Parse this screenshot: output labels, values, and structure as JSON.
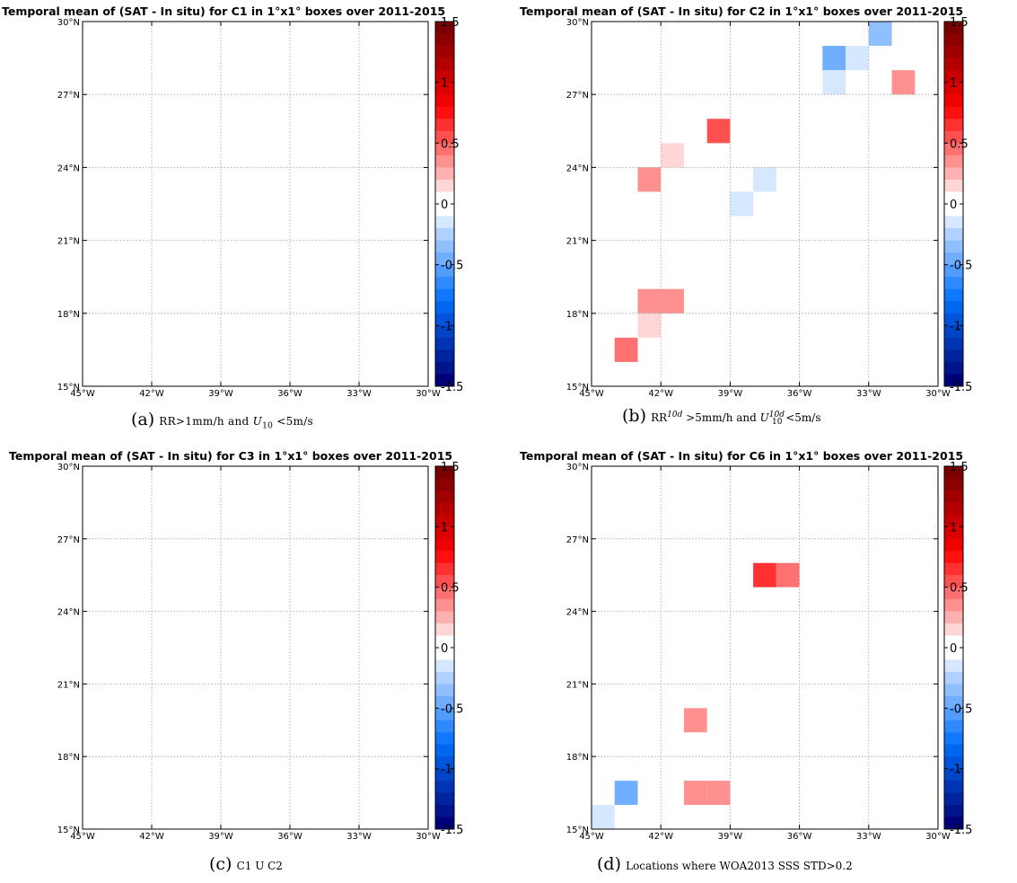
{
  "chart_data": [
    {
      "type": "heatmap",
      "title": "Temporal mean of (SAT - In situ) for C1 in 1°x1° boxes over 2011-2015",
      "caption_label": "(a)",
      "caption_text": "RR>1mm/h and U10 <5m/s",
      "xlim": [
        -45,
        -30
      ],
      "ylim": [
        15,
        30
      ],
      "xticks": [
        "45°W",
        "42°W",
        "39°W",
        "36°W",
        "33°W",
        "30°W"
      ],
      "yticks": [
        "15°N",
        "18°N",
        "21°N",
        "24°N",
        "27°N",
        "30°N"
      ],
      "grid": true,
      "cells": []
    },
    {
      "type": "heatmap",
      "title": "Temporal mean of (SAT - In situ) for C2 in 1°x1° boxes over 2011-2015",
      "caption_label": "(b)",
      "caption_text": "RR10d >5mm/h and U10d10 <5m/s",
      "xlim": [
        -45,
        -30
      ],
      "ylim": [
        15,
        30
      ],
      "xticks": [
        "45°W",
        "42°W",
        "39°W",
        "36°W",
        "33°W",
        "30°W"
      ],
      "yticks": [
        "15°N",
        "18°N",
        "21°N",
        "24°N",
        "27°N",
        "30°N"
      ],
      "grid": true,
      "cells": [
        {
          "lon": -33,
          "lat": 29,
          "value": -0.35
        },
        {
          "lon": -35,
          "lat": 28,
          "value": -0.45
        },
        {
          "lon": -34,
          "lat": 28,
          "value": -0.15
        },
        {
          "lon": -35,
          "lat": 27,
          "value": -0.15
        },
        {
          "lon": -32,
          "lat": 27,
          "value": 0.35
        },
        {
          "lon": -40,
          "lat": 25,
          "value": 0.6
        },
        {
          "lon": -42,
          "lat": 24,
          "value": 0.15
        },
        {
          "lon": -43,
          "lat": 23,
          "value": 0.3
        },
        {
          "lon": -38,
          "lat": 23,
          "value": -0.15
        },
        {
          "lon": -39,
          "lat": 22,
          "value": -0.15
        },
        {
          "lon": -43,
          "lat": 18,
          "value": 0.3
        },
        {
          "lon": -42,
          "lat": 18,
          "value": 0.3
        },
        {
          "lon": -43,
          "lat": 17,
          "value": 0.15
        },
        {
          "lon": -44,
          "lat": 16,
          "value": 0.45
        }
      ]
    },
    {
      "type": "heatmap",
      "title": "Temporal mean of (SAT - In situ) for C3 in 1°x1° boxes over 2011-2015",
      "caption_label": "(c)",
      "caption_text": "C1 U C2",
      "xlim": [
        -45,
        -30
      ],
      "ylim": [
        15,
        30
      ],
      "xticks": [
        "45°W",
        "42°W",
        "39°W",
        "36°W",
        "33°W",
        "30°W"
      ],
      "yticks": [
        "15°N",
        "18°N",
        "21°N",
        "24°N",
        "27°N",
        "30°N"
      ],
      "grid": true,
      "cells": []
    },
    {
      "type": "heatmap",
      "title": "Temporal mean of (SAT - In situ) for C6 in 1°x1° boxes over 2011-2015",
      "caption_label": "(d)",
      "caption_text": "Locations where WOA2013 SSS STD>0.2",
      "xlim": [
        -45,
        -30
      ],
      "ylim": [
        15,
        30
      ],
      "xticks": [
        "45°W",
        "42°W",
        "39°W",
        "36°W",
        "33°W",
        "30°W"
      ],
      "yticks": [
        "15°N",
        "18°N",
        "21°N",
        "24°N",
        "27°N",
        "30°N"
      ],
      "grid": true,
      "cells": [
        {
          "lon": -38,
          "lat": 25,
          "value": 0.7
        },
        {
          "lon": -37,
          "lat": 25,
          "value": 0.45
        },
        {
          "lon": -41,
          "lat": 19,
          "value": 0.3
        },
        {
          "lon": -41,
          "lat": 16,
          "value": 0.3
        },
        {
          "lon": -40,
          "lat": 16,
          "value": 0.4
        },
        {
          "lon": -44,
          "lat": 16,
          "value": -0.45
        },
        {
          "lon": -45,
          "lat": 15,
          "value": -0.15
        }
      ]
    }
  ],
  "colorbar": {
    "range": [
      -1.5,
      1.5
    ],
    "ticks": [
      "1.5",
      "1",
      "0.5",
      "0",
      "-0.5",
      "-1",
      "-1.5"
    ],
    "colors_top_to_bottom": [
      "#7a0000",
      "#8c0000",
      "#a00000",
      "#b40000",
      "#c80000",
      "#dc0000",
      "#f00000",
      "#ff1010",
      "#ff3030",
      "#ff5050",
      "#ff7070",
      "#ff9090",
      "#ffb0b0",
      "#ffd6d6",
      "#ffffff",
      "#ffffff",
      "#d6e8ff",
      "#b0d0ff",
      "#90bfff",
      "#70aeff",
      "#509cff",
      "#308aff",
      "#1078ff",
      "#0066f0",
      "#0054dc",
      "#0044c8",
      "#0034b4",
      "#0024a0",
      "#00148c",
      "#000078"
    ]
  }
}
